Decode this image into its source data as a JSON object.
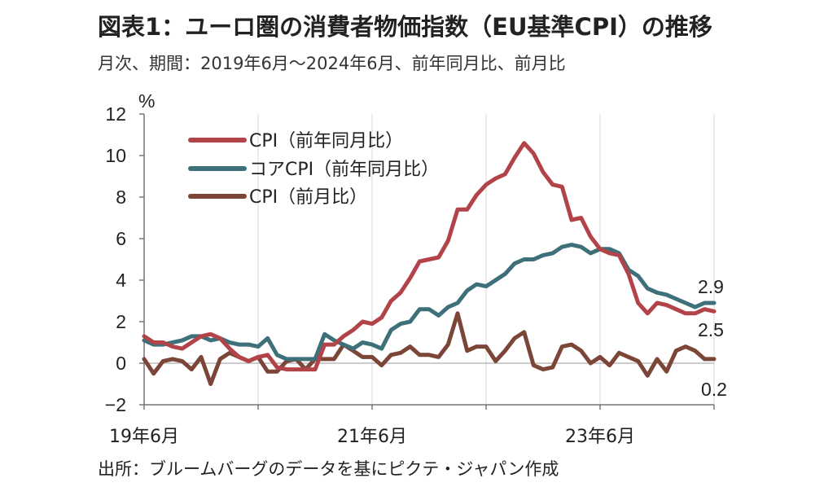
{
  "header": {
    "title": "図表1：ユーロ圏の消費者物価指数（EU基準CPI）の推移",
    "subtitle": "月次、期間：2019年6月～2024年6月、前年同月比、前月比"
  },
  "footer": {
    "source": "出所：ブルームバーグのデータを基にピクテ・ジャパン作成"
  },
  "chart_data": {
    "type": "line",
    "ylabel": "%",
    "ylim": [
      -2,
      12
    ],
    "yticks": [
      "12",
      "10",
      "8",
      "6",
      "4",
      "2",
      "0",
      "−2"
    ],
    "ytick_values": [
      12,
      10,
      8,
      6,
      4,
      2,
      0,
      -2
    ],
    "xticks": [
      {
        "label": "19年6月",
        "index": 0
      },
      {
        "label": "21年6月",
        "index": 24
      },
      {
        "label": "23年6月",
        "index": 48
      }
    ],
    "x": [
      "2019-06",
      "2019-07",
      "2019-08",
      "2019-09",
      "2019-10",
      "2019-11",
      "2019-12",
      "2020-01",
      "2020-02",
      "2020-03",
      "2020-04",
      "2020-05",
      "2020-06",
      "2020-07",
      "2020-08",
      "2020-09",
      "2020-10",
      "2020-11",
      "2020-12",
      "2021-01",
      "2021-02",
      "2021-03",
      "2021-04",
      "2021-05",
      "2021-06",
      "2021-07",
      "2021-08",
      "2021-09",
      "2021-10",
      "2021-11",
      "2021-12",
      "2022-01",
      "2022-02",
      "2022-03",
      "2022-04",
      "2022-05",
      "2022-06",
      "2022-07",
      "2022-08",
      "2022-09",
      "2022-10",
      "2022-11",
      "2022-12",
      "2023-01",
      "2023-02",
      "2023-03",
      "2023-04",
      "2023-05",
      "2023-06",
      "2023-07",
      "2023-08",
      "2023-09",
      "2023-10",
      "2023-11",
      "2023-12",
      "2024-01",
      "2024-02",
      "2024-03",
      "2024-04",
      "2024-05",
      "2024-06"
    ],
    "grid": "vertical",
    "legend_position": "top-left",
    "series": [
      {
        "name": "CPI（前年同月比）",
        "color": "#b24349",
        "values": [
          1.3,
          1.0,
          1.0,
          0.8,
          0.7,
          1.0,
          1.3,
          1.4,
          1.2,
          0.7,
          0.3,
          0.1,
          0.3,
          0.4,
          -0.2,
          -0.3,
          -0.3,
          -0.3,
          -0.3,
          0.9,
          0.9,
          1.3,
          1.6,
          2.0,
          1.9,
          2.2,
          3.0,
          3.4,
          4.1,
          4.9,
          5.0,
          5.1,
          5.9,
          7.4,
          7.4,
          8.1,
          8.6,
          8.9,
          9.1,
          9.9,
          10.6,
          10.1,
          9.2,
          8.6,
          8.5,
          6.9,
          7.0,
          6.1,
          5.5,
          5.3,
          5.2,
          4.3,
          2.9,
          2.4,
          2.9,
          2.8,
          2.6,
          2.4,
          2.4,
          2.6,
          2.5
        ],
        "end_label": "2.5"
      },
      {
        "name": "コアCPI（前年同月比）",
        "color": "#3e7079",
        "values": [
          1.1,
          0.9,
          0.9,
          1.0,
          1.1,
          1.3,
          1.3,
          1.1,
          1.2,
          1.0,
          0.9,
          0.9,
          0.8,
          1.2,
          0.4,
          0.2,
          0.2,
          0.2,
          0.2,
          1.4,
          1.1,
          0.9,
          0.7,
          1.0,
          0.9,
          0.7,
          1.6,
          1.9,
          2.0,
          2.6,
          2.6,
          2.3,
          2.7,
          2.9,
          3.5,
          3.8,
          3.7,
          4.0,
          4.3,
          4.8,
          5.0,
          5.0,
          5.2,
          5.3,
          5.6,
          5.7,
          5.6,
          5.3,
          5.5,
          5.5,
          5.3,
          4.5,
          4.2,
          3.6,
          3.4,
          3.3,
          3.1,
          2.9,
          2.7,
          2.9,
          2.9
        ],
        "end_label": "2.9"
      },
      {
        "name": "CPI（前月比）",
        "color": "#7b4537",
        "values": [
          0.2,
          -0.5,
          0.1,
          0.2,
          0.1,
          -0.3,
          0.3,
          -1.0,
          0.2,
          0.5,
          0.3,
          0.1,
          0.3,
          -0.4,
          -0.4,
          0.1,
          0.2,
          -0.3,
          0.2,
          0.2,
          0.2,
          0.9,
          0.6,
          0.3,
          0.3,
          -0.1,
          0.4,
          0.5,
          0.8,
          0.4,
          0.4,
          0.3,
          0.9,
          2.4,
          0.6,
          0.8,
          0.8,
          0.1,
          0.6,
          1.2,
          1.5,
          -0.1,
          -0.3,
          -0.2,
          0.8,
          0.9,
          0.6,
          0.0,
          0.3,
          -0.1,
          0.5,
          0.3,
          0.1,
          -0.6,
          0.2,
          -0.4,
          0.6,
          0.8,
          0.6,
          0.2,
          0.2
        ],
        "end_label": "0.2"
      }
    ]
  }
}
